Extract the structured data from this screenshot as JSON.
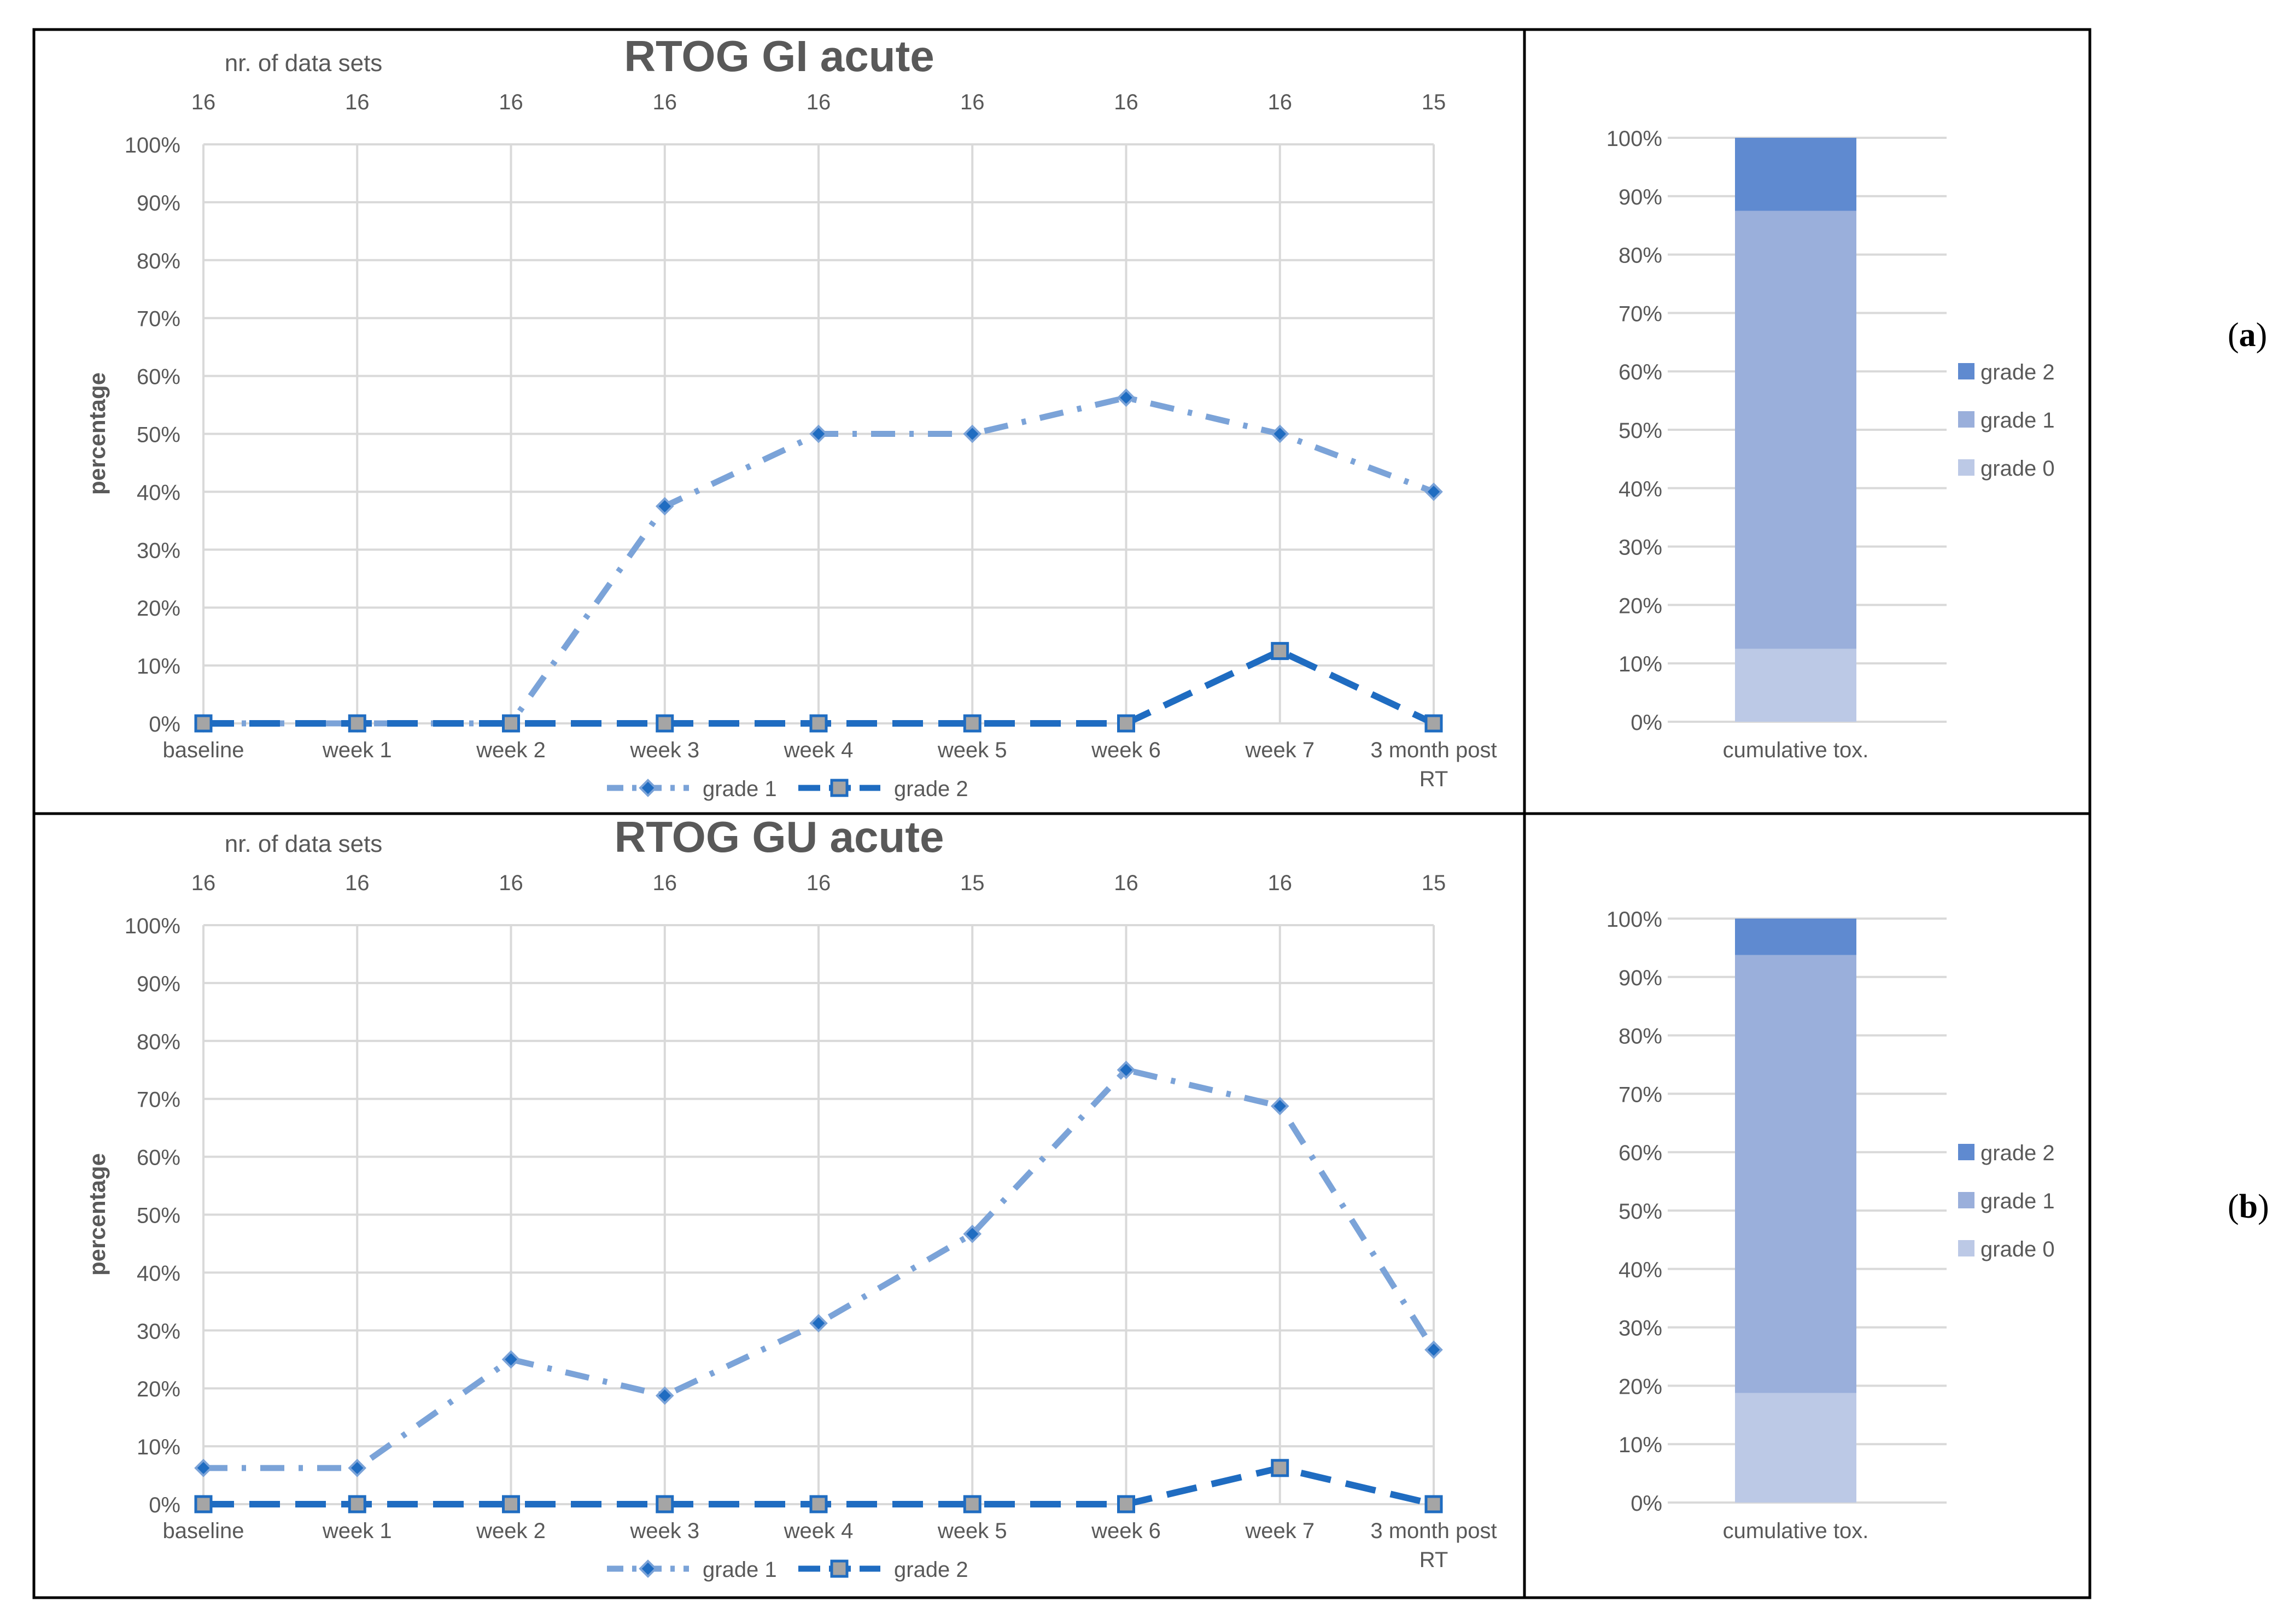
{
  "figure": {
    "panels": [
      {
        "label": "a",
        "line_chart": {
          "type": "line",
          "title": "RTOG GI acute",
          "ylabel": "percentage",
          "top_axis_label": "nr. of data sets",
          "categories": [
            "baseline",
            "week 1",
            "week 2",
            "week 3",
            "week 4",
            "week 5",
            "week 6",
            "week 7",
            "3 month post RT"
          ],
          "n_data_sets": [
            "16",
            "16",
            "16",
            "16",
            "16",
            "16",
            "16",
            "16",
            "15"
          ],
          "yticks": [
            "0%",
            "10%",
            "20%",
            "30%",
            "40%",
            "50%",
            "60%",
            "70%",
            "80%",
            "90%",
            "100%"
          ],
          "ylim": [
            0,
            100
          ],
          "series": [
            {
              "name": "grade 1",
              "values": [
                0,
                0,
                0,
                37.5,
                50,
                50,
                56.25,
                50,
                40
              ],
              "color": "#7ba3d8",
              "marker": "diamond",
              "dash": "dashdot"
            },
            {
              "name": "grade 2",
              "values": [
                0,
                0,
                0,
                0,
                0,
                0,
                0,
                12.5,
                0
              ],
              "color": "#1f6cc1",
              "marker": "square",
              "dash": "dash"
            }
          ]
        },
        "bar_chart": {
          "type": "bar",
          "stacked": true,
          "category": "cumulative tox.",
          "yticks": [
            "0%",
            "10%",
            "20%",
            "30%",
            "40%",
            "50%",
            "60%",
            "70%",
            "80%",
            "90%",
            "100%"
          ],
          "ylim": [
            0,
            100
          ],
          "series": [
            {
              "name": "grade 0",
              "value": 12.5,
              "color": "#bcc9e6"
            },
            {
              "name": "grade 1",
              "value": 75,
              "color": "#9aafdb"
            },
            {
              "name": "grade 2",
              "value": 12.5,
              "color": "#5f8ad0"
            }
          ],
          "legend_order": [
            "grade 2",
            "grade 1",
            "grade 0"
          ]
        }
      },
      {
        "label": "b",
        "line_chart": {
          "type": "line",
          "title": "RTOG GU acute",
          "ylabel": "percentage",
          "top_axis_label": "nr. of data sets",
          "categories": [
            "baseline",
            "week 1",
            "week 2",
            "week 3",
            "week 4",
            "week 5",
            "week 6",
            "week 7",
            "3 month post RT"
          ],
          "n_data_sets": [
            "16",
            "16",
            "16",
            "16",
            "16",
            "15",
            "16",
            "16",
            "15"
          ],
          "yticks": [
            "0%",
            "10%",
            "20%",
            "30%",
            "40%",
            "50%",
            "60%",
            "70%",
            "80%",
            "90%",
            "100%"
          ],
          "ylim": [
            0,
            100
          ],
          "series": [
            {
              "name": "grade 1",
              "values": [
                6.25,
                6.25,
                25,
                18.75,
                31.25,
                46.67,
                75,
                68.75,
                26.67
              ],
              "color": "#7ba3d8",
              "marker": "diamond",
              "dash": "dashdot"
            },
            {
              "name": "grade 2",
              "values": [
                0,
                0,
                0,
                0,
                0,
                0,
                0,
                6.25,
                0
              ],
              "color": "#1f6cc1",
              "marker": "square",
              "dash": "dash"
            }
          ]
        },
        "bar_chart": {
          "type": "bar",
          "stacked": true,
          "category": "cumulative tox.",
          "yticks": [
            "0%",
            "10%",
            "20%",
            "30%",
            "40%",
            "50%",
            "60%",
            "70%",
            "80%",
            "90%",
            "100%"
          ],
          "ylim": [
            0,
            100
          ],
          "series": [
            {
              "name": "grade 0",
              "value": 18.75,
              "color": "#bcc9e6"
            },
            {
              "name": "grade 1",
              "value": 75,
              "color": "#9aafdb"
            },
            {
              "name": "grade 2",
              "value": 6.25,
              "color": "#5f8ad0"
            }
          ],
          "legend_order": [
            "grade 2",
            "grade 1",
            "grade 0"
          ]
        }
      }
    ]
  }
}
